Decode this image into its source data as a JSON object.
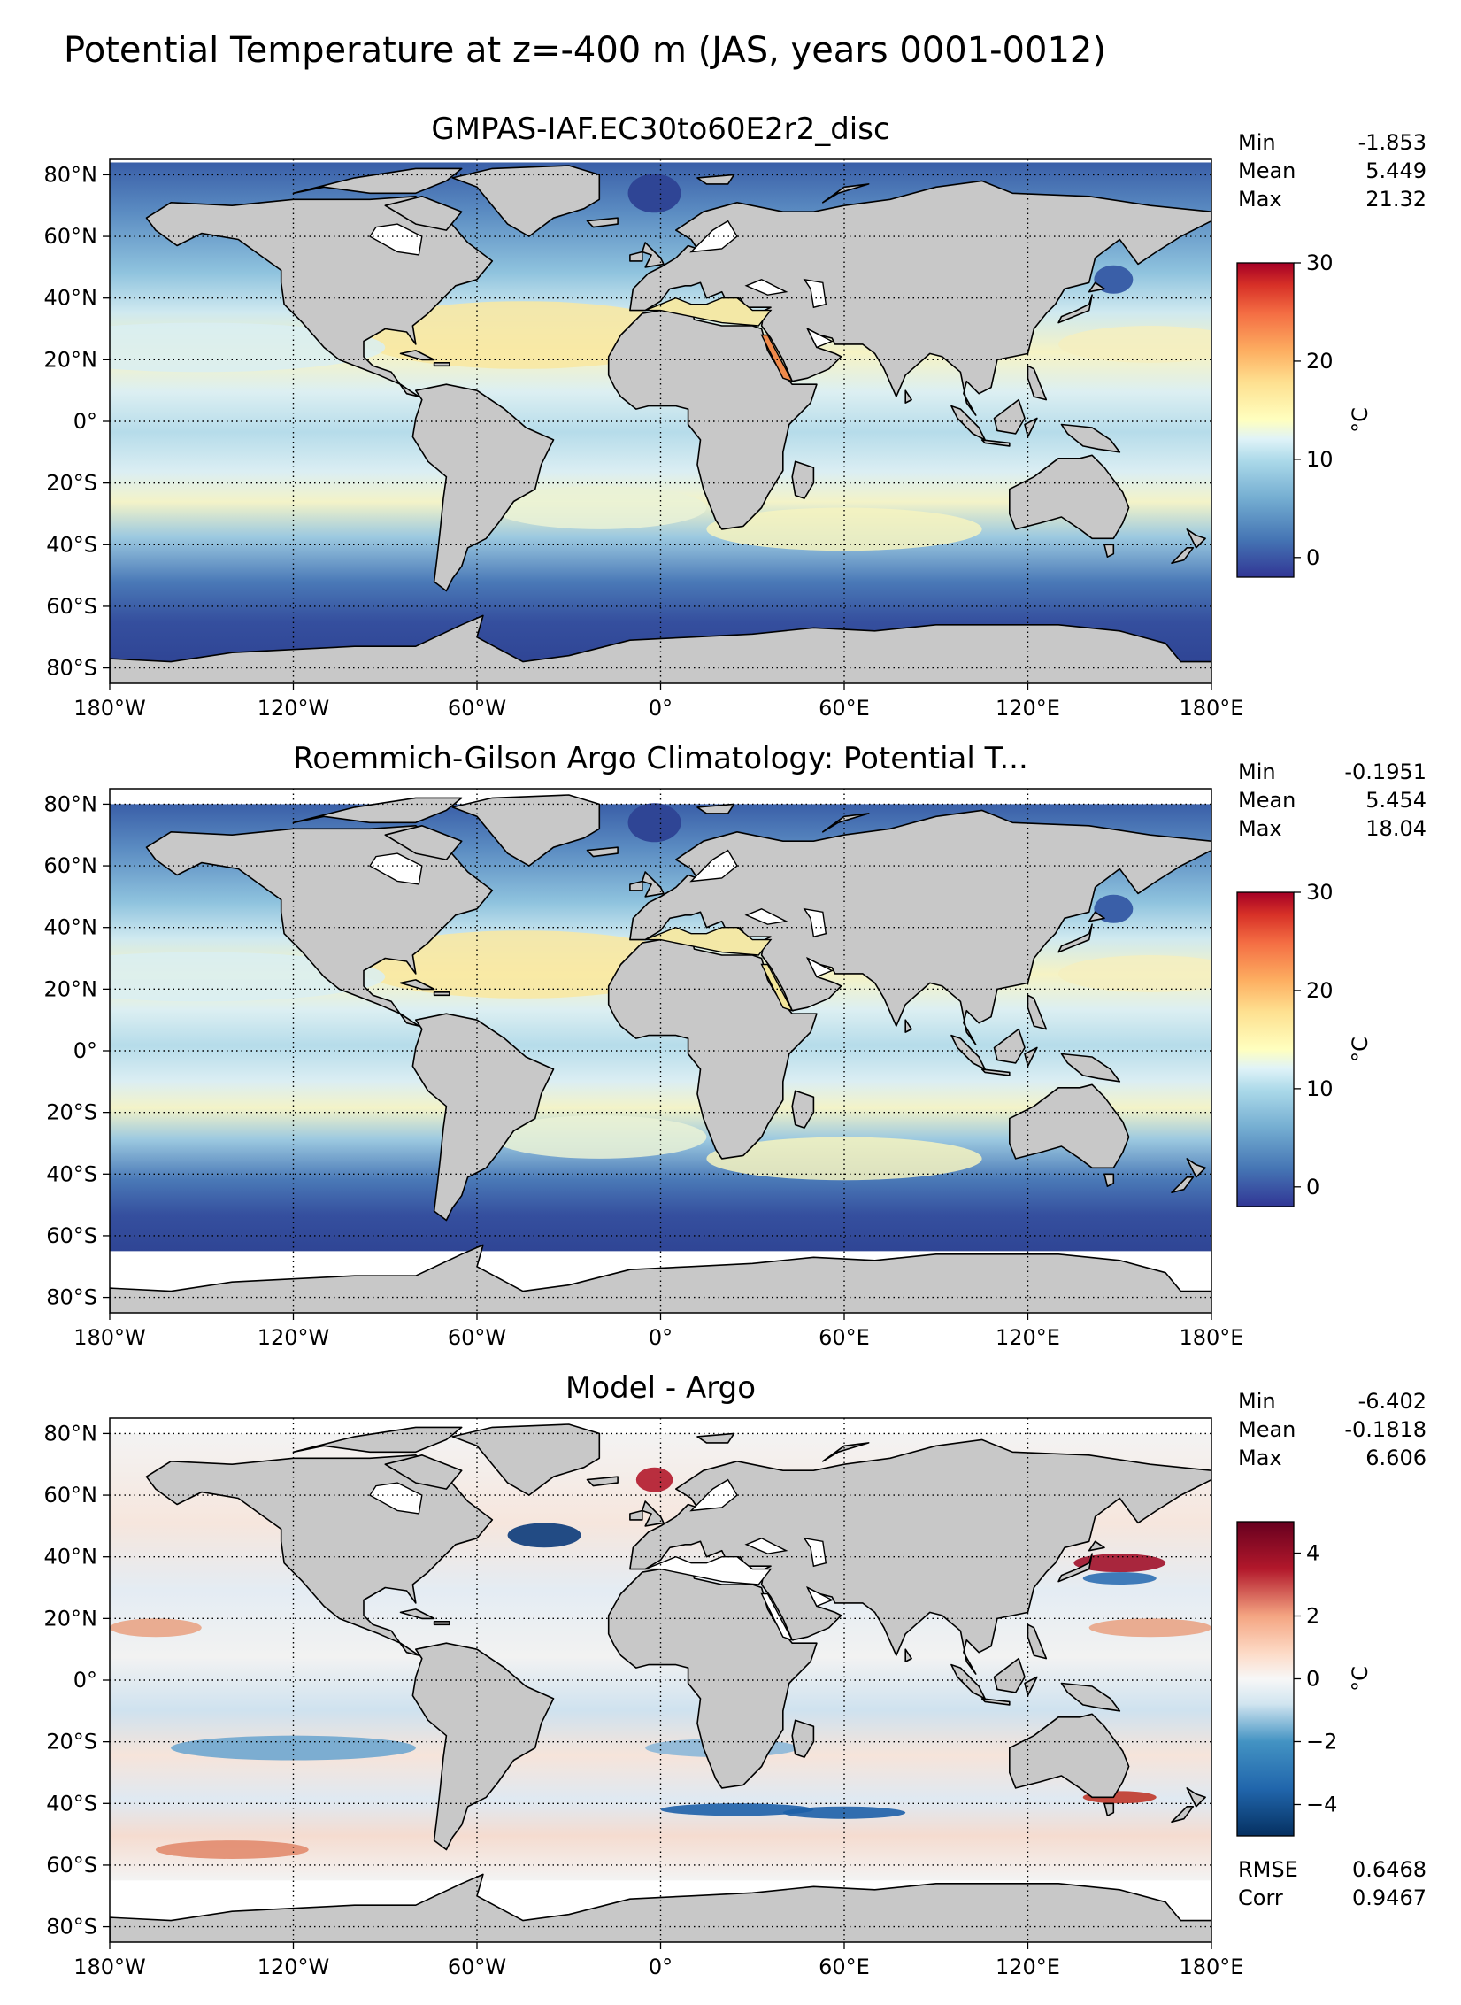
{
  "suptitle": "Potential Temperature at z=-400 m (JAS, years 0001-0012)",
  "x_tick_labels": [
    "180°W",
    "120°W",
    "60°W",
    "0°",
    "60°E",
    "120°E",
    "180°E"
  ],
  "y_tick_labels": [
    "80°N",
    "60°N",
    "40°N",
    "20°N",
    "0°",
    "20°S",
    "40°S",
    "60°S",
    "80°S"
  ],
  "stat_labels": {
    "min": "Min",
    "mean": "Mean",
    "max": "Max",
    "rmse": "RMSE",
    "corr": "Corr"
  },
  "colors": {
    "land": "#c8c8c8",
    "no_data": "#ffffff",
    "warm_extreme": "#b2182b",
    "cold_extreme": "#313695"
  },
  "panels": [
    {
      "title": "GMPAS-IAF.EC30to60E2r2_disc",
      "stats": {
        "min": "-1.853",
        "mean": "5.449",
        "max": "21.32"
      },
      "colorbar": {
        "label": "°C",
        "colormap": "RdYlBu_r",
        "ticks": [
          "0",
          "10",
          "20",
          "30"
        ],
        "range": [
          -2,
          30
        ]
      }
    },
    {
      "title": "Roemmich-Gilson Argo Climatology: Potential T...",
      "stats": {
        "min": "-0.1951",
        "mean": "5.454",
        "max": "18.04"
      },
      "colorbar": {
        "label": "°C",
        "colormap": "RdYlBu_r",
        "ticks": [
          "0",
          "10",
          "20",
          "30"
        ],
        "range": [
          -2,
          30
        ]
      }
    },
    {
      "title": "Model - Argo",
      "stats": {
        "min": "-6.402",
        "mean": "-0.1818",
        "max": "6.606",
        "rmse": "0.6468",
        "corr": "0.9467"
      },
      "colorbar": {
        "label": "°C",
        "colormap": "RdBu_r",
        "ticks": [
          "4",
          "2",
          "0",
          "−2",
          "−4"
        ],
        "range": [
          -5,
          5
        ]
      }
    }
  ]
}
